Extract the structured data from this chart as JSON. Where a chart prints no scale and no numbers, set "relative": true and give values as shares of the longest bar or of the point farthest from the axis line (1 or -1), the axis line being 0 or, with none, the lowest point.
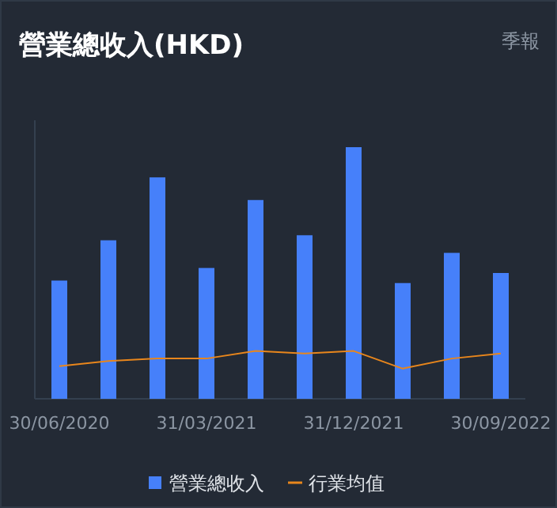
{
  "chart_data": {
    "type": "bar",
    "title": "營業總收入(HKD)",
    "subtitle": "季報",
    "relative": true,
    "legend": "bottom",
    "categories": [
      "30/06/2020",
      null,
      null,
      "31/03/2021",
      null,
      null,
      "31/12/2021",
      null,
      null,
      "30/09/2022"
    ],
    "series": [
      {
        "name": "營業總收入",
        "color": "#4680fa",
        "values": [
          0.47,
          0.63,
          0.88,
          0.52,
          0.79,
          0.65,
          1,
          0.46,
          0.58,
          0.5
        ]
      },
      {
        "name": "行業均值",
        "type": "line",
        "color": "#e8861c",
        "values": [
          0.13,
          0.15,
          0.16,
          0.16,
          0.19,
          0.18,
          0.19,
          0.12,
          0.16,
          0.18
        ]
      }
    ]
  }
}
